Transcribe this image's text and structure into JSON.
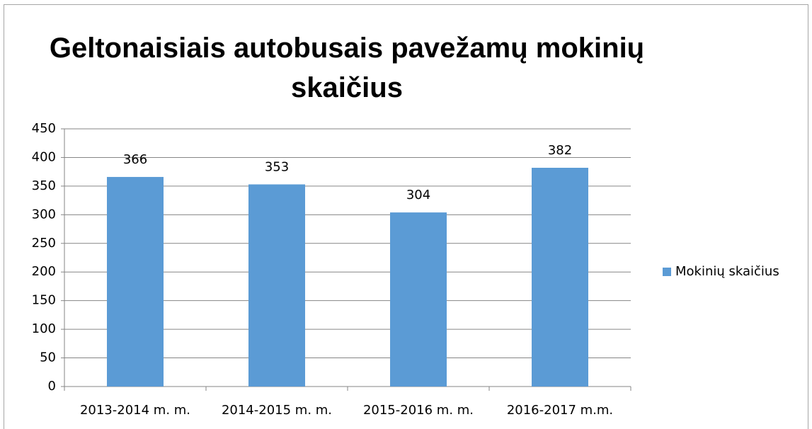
{
  "chart_data": {
    "type": "bar",
    "title": "Geltonaisiais autobusais pavežamų mokinių skaičius",
    "categories": [
      "2013-2014 m. m.",
      "2014-2015 m. m.",
      "2015-2016 m. m.",
      "2016-2017 m.m."
    ],
    "series": [
      {
        "name": "Mokinių skaičius",
        "color": "#5b9bd5",
        "values": [
          366,
          353,
          304,
          382
        ]
      }
    ],
    "ylim": [
      0,
      450
    ],
    "yticks": [
      0,
      50,
      100,
      150,
      200,
      250,
      300,
      350,
      400,
      450
    ],
    "grid": true,
    "legend": "right"
  }
}
